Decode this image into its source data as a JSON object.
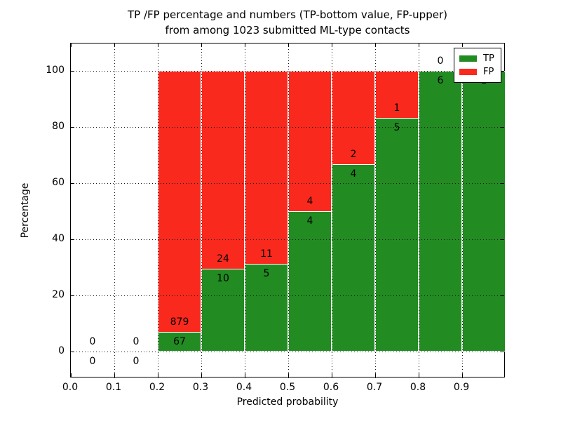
{
  "chart_data": {
    "type": "bar",
    "stacked": true,
    "orientation": "vertical",
    "title_line1": "TP /FP percentage and numbers (TP-bottom value, FP-upper)",
    "title_line2": "from among 1023 submitted ML-type contacts",
    "xlabel": "Predicted probability",
    "ylabel": "Percentage",
    "xlim": [
      0.0,
      1.0
    ],
    "ylim": [
      0,
      100
    ],
    "bin_width": 0.1,
    "grid": true,
    "xtick_labels": [
      "0.0",
      "0.1",
      "0.2",
      "0.3",
      "0.4",
      "0.5",
      "0.6",
      "0.7",
      "0.8",
      "0.9"
    ],
    "ytick_labels": [
      "0",
      "20",
      "40",
      "60",
      "80",
      "100"
    ],
    "legend": {
      "position": "upper right",
      "entries": [
        {
          "label": "TP",
          "color": "#228B22"
        },
        {
          "label": "FP",
          "color": "#FA291D"
        }
      ]
    },
    "colors": {
      "tp": "#228B22",
      "fp": "#FA291D"
    },
    "bins": [
      {
        "x_start": 0.0,
        "x_end": 0.1,
        "tp_count": 0,
        "fp_count": 0
      },
      {
        "x_start": 0.1,
        "x_end": 0.2,
        "tp_count": 0,
        "fp_count": 0
      },
      {
        "x_start": 0.2,
        "x_end": 0.3,
        "tp_count": 67,
        "fp_count": 879
      },
      {
        "x_start": 0.3,
        "x_end": 0.4,
        "tp_count": 10,
        "fp_count": 24
      },
      {
        "x_start": 0.4,
        "x_end": 0.5,
        "tp_count": 5,
        "fp_count": 11
      },
      {
        "x_start": 0.5,
        "x_end": 0.6,
        "tp_count": 4,
        "fp_count": 4
      },
      {
        "x_start": 0.6,
        "x_end": 0.7,
        "tp_count": 4,
        "fp_count": 2
      },
      {
        "x_start": 0.7,
        "x_end": 0.8,
        "tp_count": 5,
        "fp_count": 1
      },
      {
        "x_start": 0.8,
        "x_end": 0.9,
        "tp_count": 6,
        "fp_count": 0
      },
      {
        "x_start": 0.9,
        "x_end": 1.0,
        "tp_count": 1,
        "fp_count": 0
      }
    ]
  }
}
